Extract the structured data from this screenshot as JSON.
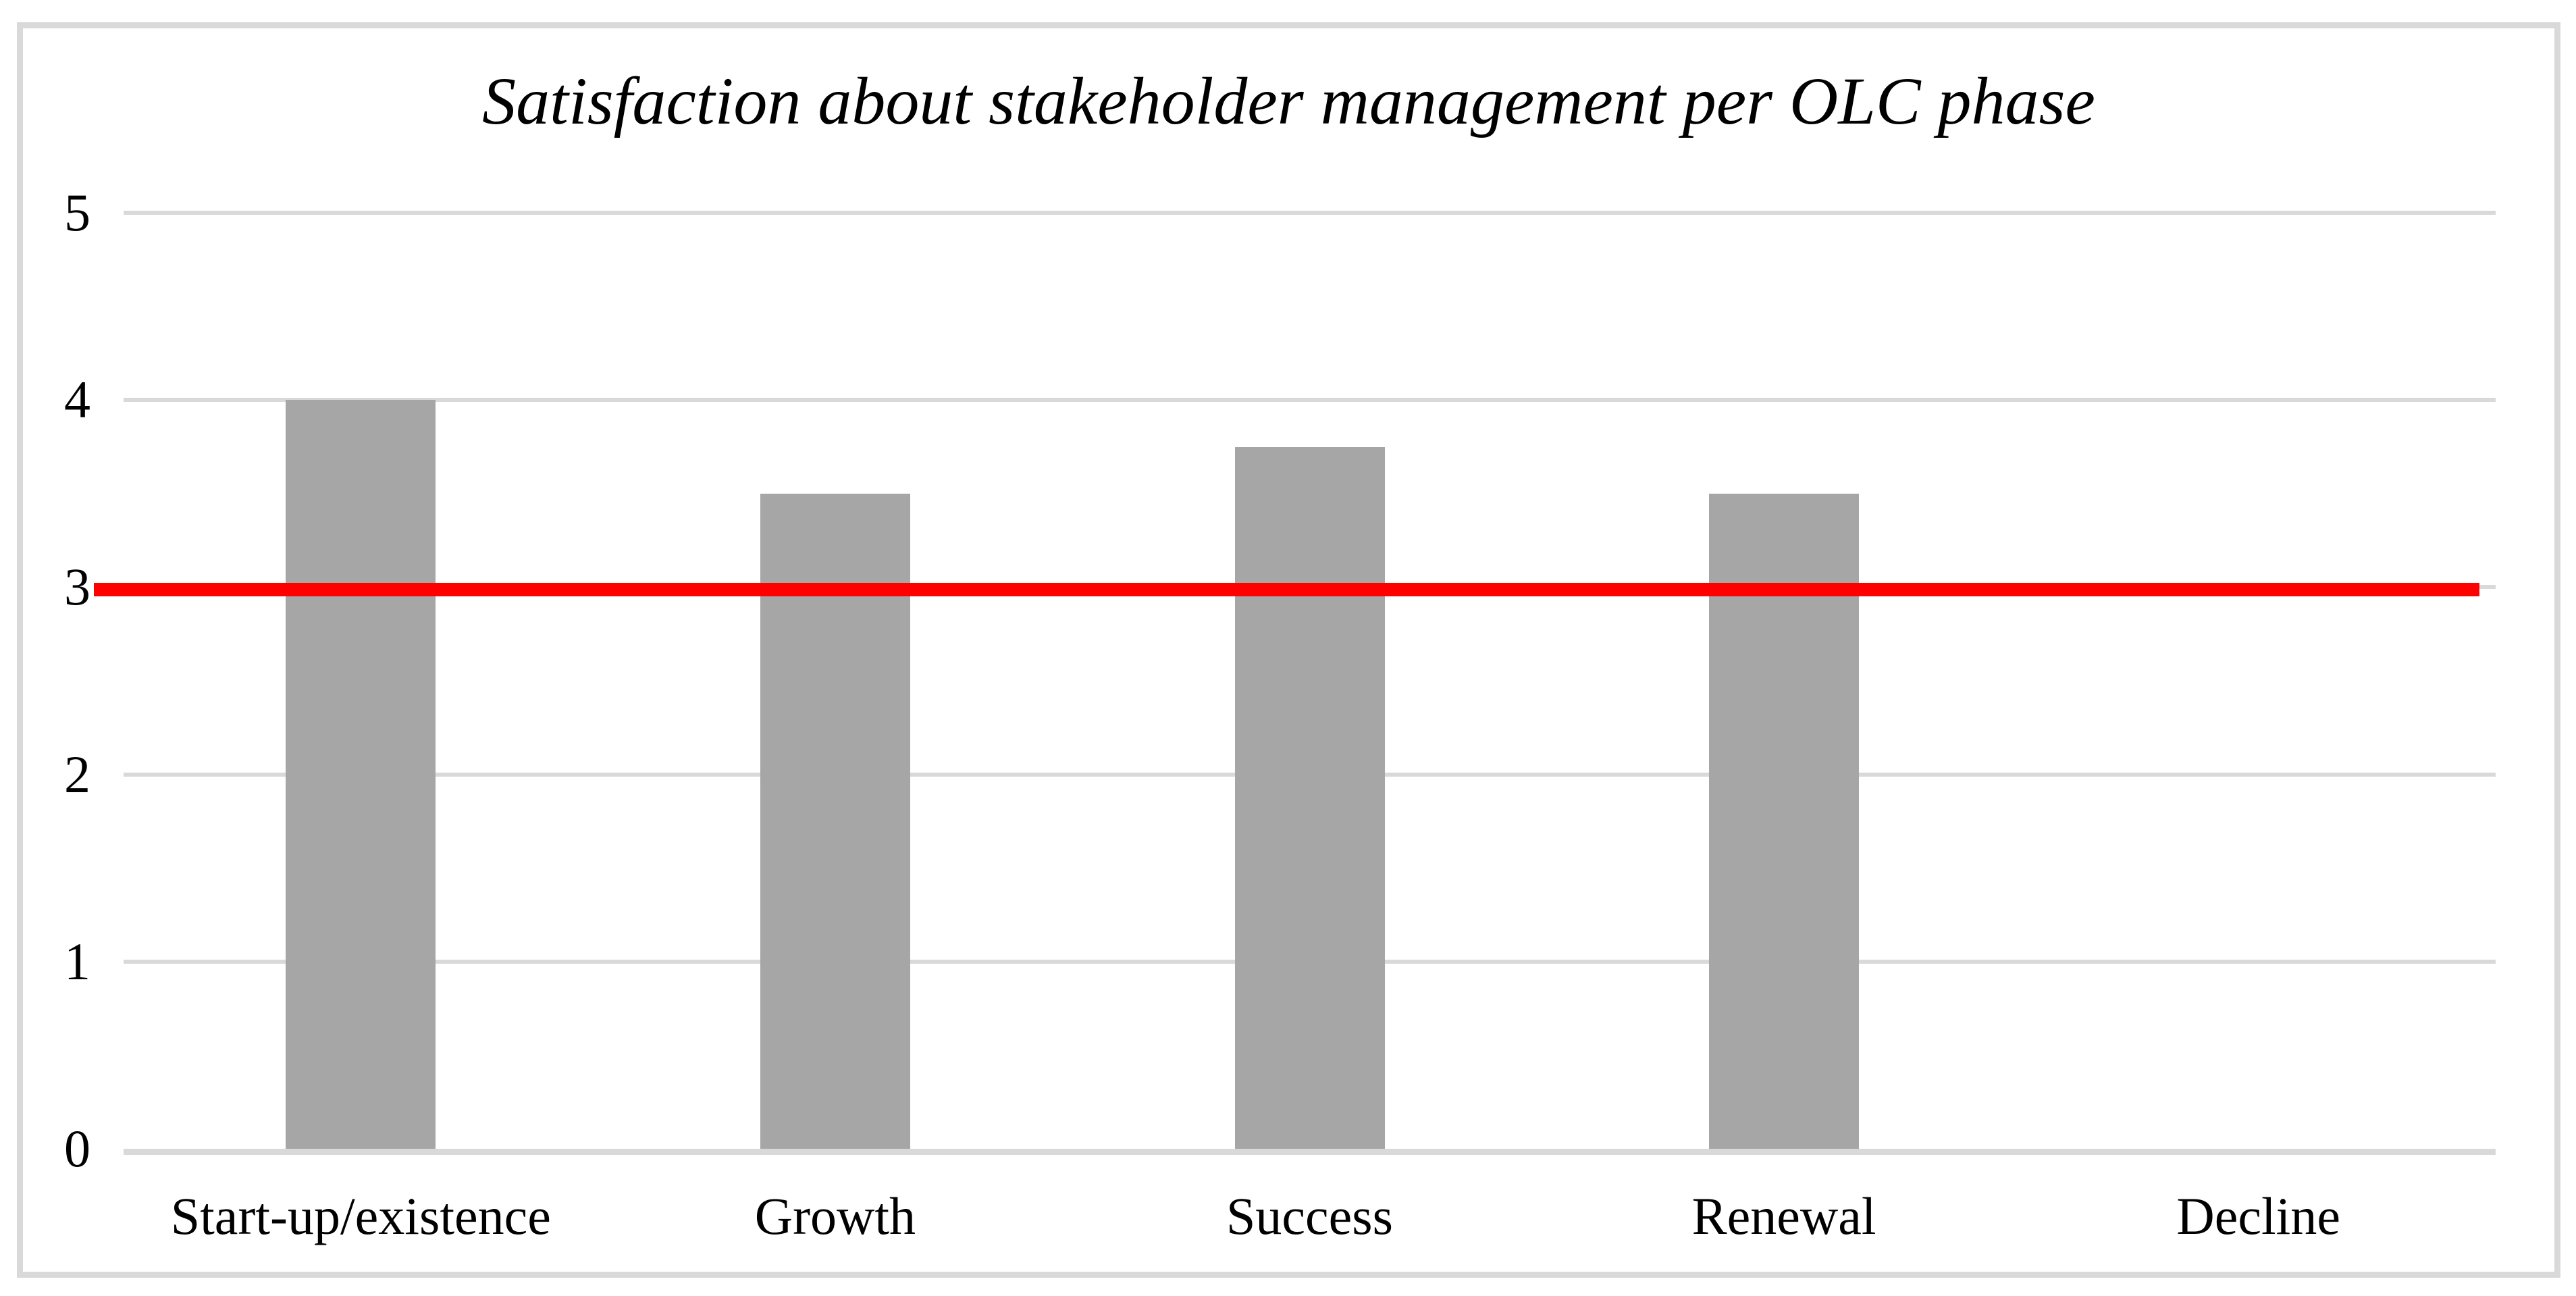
{
  "chart_data": {
    "type": "bar",
    "title": "Satisfaction about stakeholder management per OLC phase",
    "categories": [
      "Start-up/existence",
      "Growth",
      "Success",
      "Renewal",
      "Decline"
    ],
    "values": [
      4,
      3.5,
      3.75,
      3.5,
      0
    ],
    "ylim": [
      0,
      5
    ],
    "yticks": [
      0,
      1,
      2,
      3,
      4,
      5
    ],
    "xlabel": "",
    "ylabel": "",
    "grid": true,
    "legend_position": "none",
    "reference_line": {
      "value": 3,
      "color": "#FF0000"
    },
    "bar_color": "#A6A6A6",
    "gridline_color": "#D9D9D9",
    "axis_line_color": "#D9D9D9",
    "frame_border_color": "#D9D9D9",
    "title_color": "#000000",
    "label_color": "#000000"
  }
}
